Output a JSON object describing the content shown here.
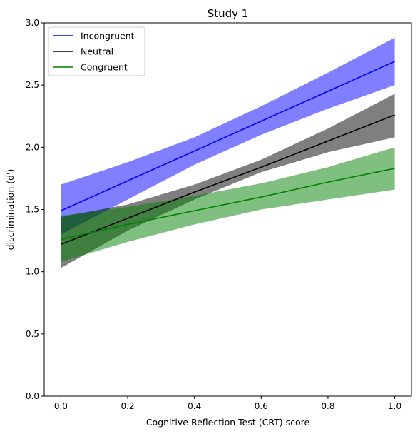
{
  "chart_data": {
    "type": "line",
    "title": "Study 1",
    "xlabel": "Cognitive Reflection Test (CRT) score",
    "ylabel": "discrimination (d')",
    "xlim": [
      -0.05,
      1.05
    ],
    "ylim": [
      0.0,
      3.0
    ],
    "xticks": [
      "0.0",
      "0.2",
      "0.4",
      "0.6",
      "0.8",
      "1.0"
    ],
    "yticks": [
      "0.0",
      "0.5",
      "1.0",
      "1.5",
      "2.0",
      "2.5",
      "3.0"
    ],
    "grid": false,
    "legend_position": "upper-left",
    "x": [
      0.0,
      0.2,
      0.4,
      0.6,
      0.8,
      1.0
    ],
    "series": [
      {
        "name": "Incongruent",
        "color": "#0000ff",
        "band_color": "#0000ff",
        "band_opacity": 0.5,
        "values": [
          1.49,
          1.73,
          1.97,
          2.21,
          2.45,
          2.69
        ],
        "lower": [
          1.3,
          1.58,
          1.86,
          2.1,
          2.31,
          2.5
        ],
        "upper": [
          1.7,
          1.88,
          2.08,
          2.33,
          2.6,
          2.88
        ]
      },
      {
        "name": "Neutral",
        "color": "#000000",
        "band_color": "#000000",
        "band_opacity": 0.5,
        "values": [
          1.22,
          1.43,
          1.64,
          1.84,
          2.05,
          2.26
        ],
        "lower": [
          1.03,
          1.33,
          1.58,
          1.8,
          1.96,
          2.08
        ],
        "upper": [
          1.44,
          1.54,
          1.7,
          1.9,
          2.15,
          2.43
        ]
      },
      {
        "name": "Congruent",
        "color": "#008000",
        "band_color": "#008000",
        "band_opacity": 0.5,
        "values": [
          1.26,
          1.38,
          1.49,
          1.6,
          1.72,
          1.83
        ],
        "lower": [
          1.08,
          1.24,
          1.38,
          1.5,
          1.58,
          1.66
        ],
        "upper": [
          1.45,
          1.52,
          1.61,
          1.71,
          1.84,
          2.0
        ]
      }
    ]
  }
}
